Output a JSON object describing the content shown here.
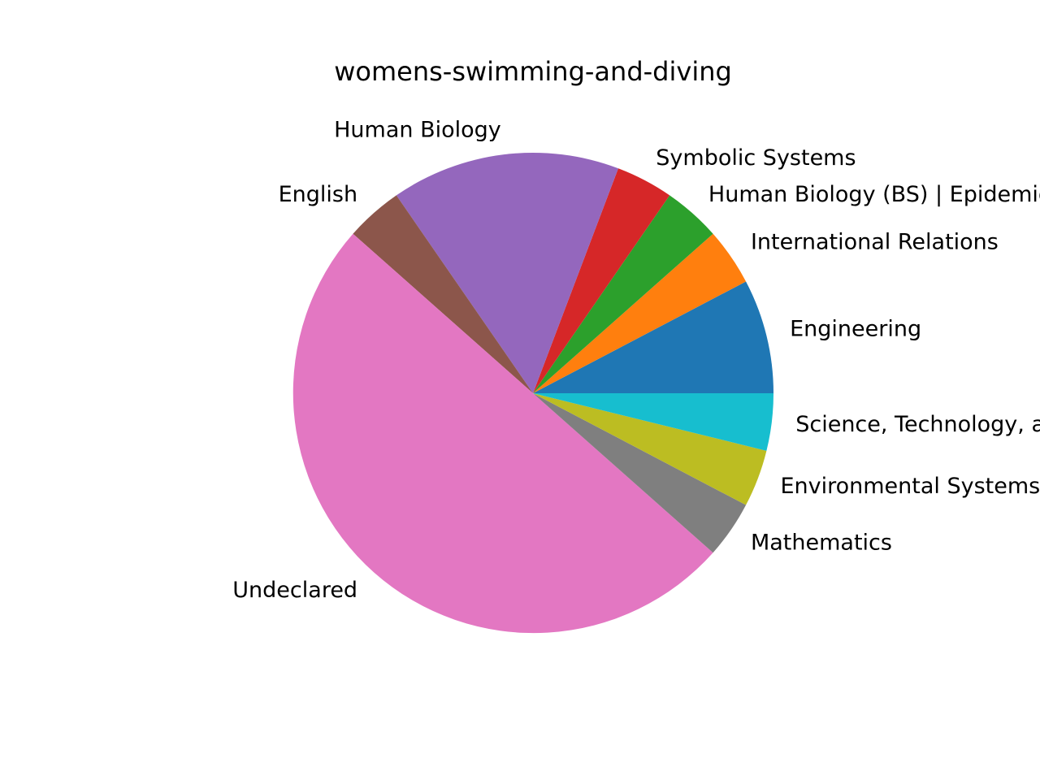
{
  "chart_data": {
    "type": "pie",
    "title": "womens-swimming-and-diving",
    "start_angle_deg": 0,
    "direction": "counterclockwise",
    "slices": [
      {
        "label": "Engineering",
        "value": 2,
        "color": "#1f77b4"
      },
      {
        "label": "International Relations",
        "value": 1,
        "color": "#ff7f0e"
      },
      {
        "label": "Human Biology (BS) | Epidemiology",
        "value": 1,
        "color": "#2ca02c"
      },
      {
        "label": "Symbolic Systems",
        "value": 1,
        "color": "#d62728"
      },
      {
        "label": "Human Biology",
        "value": 4,
        "color": "#9467bd"
      },
      {
        "label": "English",
        "value": 1,
        "color": "#8c564b"
      },
      {
        "label": "Undeclared",
        "value": 13,
        "color": "#e377c2"
      },
      {
        "label": "Mathematics",
        "value": 1,
        "color": "#7f7f7f"
      },
      {
        "label": "Environmental Systems Engineering",
        "value": 1,
        "color": "#bcbd22"
      },
      {
        "label": "Science, Technology, and Society",
        "value": 1,
        "color": "#17becf"
      }
    ]
  }
}
